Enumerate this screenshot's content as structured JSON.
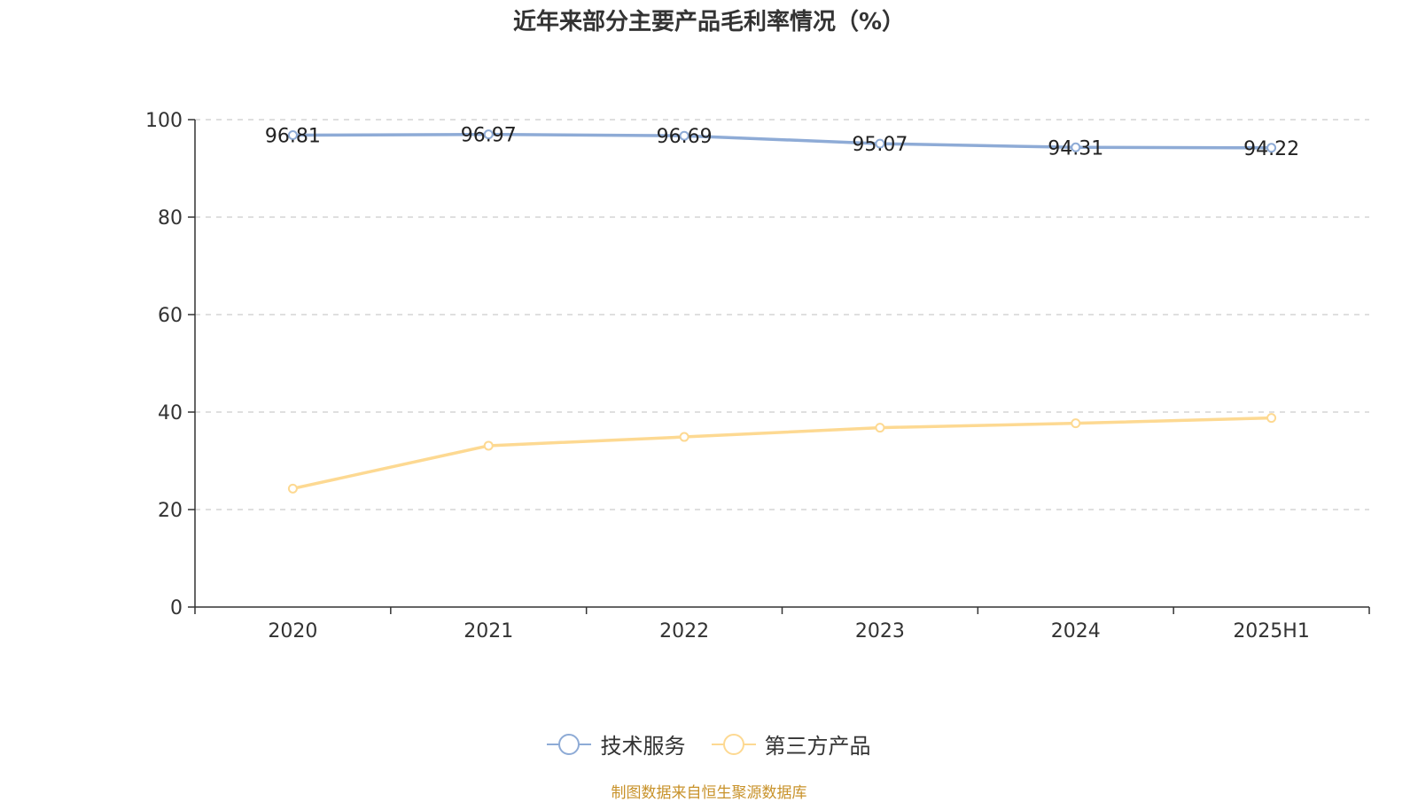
{
  "title": "近年来部分主要产品毛利率情况（%）",
  "source": "制图数据来自恒生聚源数据库",
  "colors": {
    "series1": "#8eabd6",
    "series2": "#fdd992",
    "axis": "#333333",
    "grid": "#cccccc",
    "source": "#c8922a"
  },
  "chart_data": {
    "type": "line",
    "categories": [
      "2020",
      "2021",
      "2022",
      "2023",
      "2024",
      "2025H1"
    ],
    "ylim": [
      0,
      100
    ],
    "yticks": [
      0,
      20,
      40,
      60,
      80,
      100
    ],
    "grid": true,
    "legend_position": "bottom",
    "series": [
      {
        "name": "技术服务",
        "values": [
          96.81,
          96.97,
          96.69,
          95.07,
          94.31,
          94.22
        ],
        "labels": [
          "96.81",
          "96.97",
          "96.69",
          "95.07",
          "94.31",
          "94.22"
        ],
        "show_labels": true
      },
      {
        "name": "第三方产品",
        "values": [
          24.3,
          33.1,
          34.9,
          36.8,
          37.7,
          38.8
        ],
        "show_labels": false
      }
    ]
  }
}
